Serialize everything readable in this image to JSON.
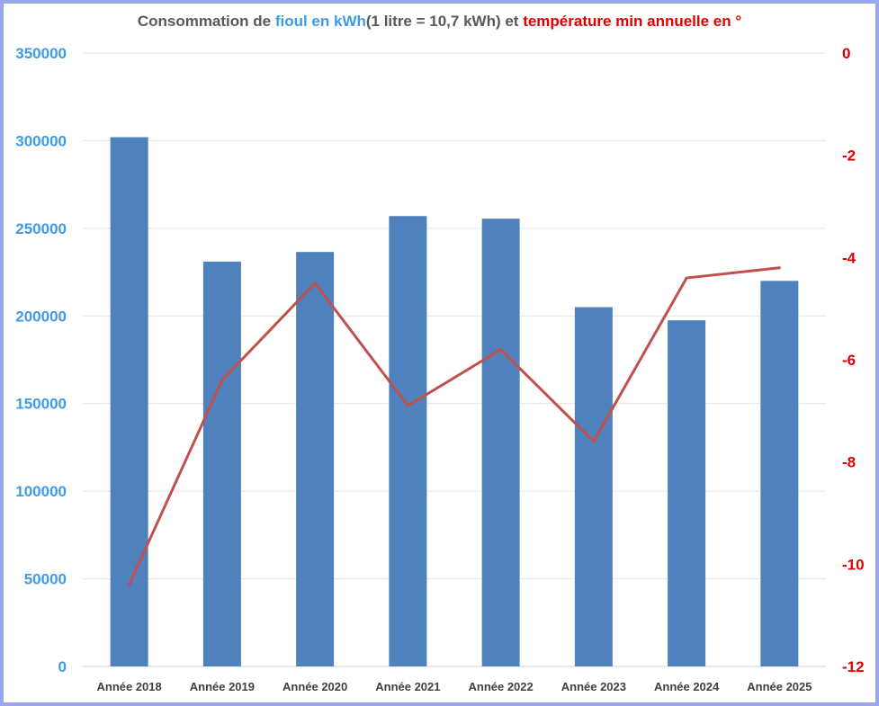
{
  "chart_data": {
    "type": "bar+line",
    "title_parts": [
      {
        "text": "Consommation de ",
        "color": "#595959"
      },
      {
        "text": "fioul en kWh",
        "color": "#3d9be9"
      },
      {
        "text": "(1 litre = 10,7 kWh) et ",
        "color": "#595959"
      },
      {
        "text": "température min annuelle en °",
        "color": "#e00000"
      }
    ],
    "categories": [
      "Année 2018",
      "Année 2019",
      "Année 2020",
      "Année 2021",
      "Année 2022",
      "Année 2023",
      "Année 2024",
      "Année 2025"
    ],
    "series": [
      {
        "type": "bar",
        "axis": "left",
        "color": "#4f81bd",
        "values": [
          302000,
          231000,
          236500,
          257000,
          255500,
          205000,
          197500,
          220000
        ]
      },
      {
        "type": "line",
        "axis": "right",
        "color": "#c0504d",
        "values": [
          -10.4,
          -6.4,
          -4.5,
          -6.9,
          -5.8,
          -7.6,
          -4.4,
          -4.2
        ]
      }
    ],
    "left_axis": {
      "min": 0,
      "max": 350000,
      "ticks": [
        "0",
        "50000",
        "100000",
        "150000",
        "200000",
        "250000",
        "300000",
        "350000"
      ],
      "color": "#3d9be9"
    },
    "right_axis": {
      "min": -12,
      "max": 0,
      "ticks": [
        "-12",
        "-10",
        "-8",
        "-6",
        "-4",
        "-2",
        "0"
      ],
      "color": "#e00000"
    },
    "grid": true,
    "legend": "none"
  }
}
